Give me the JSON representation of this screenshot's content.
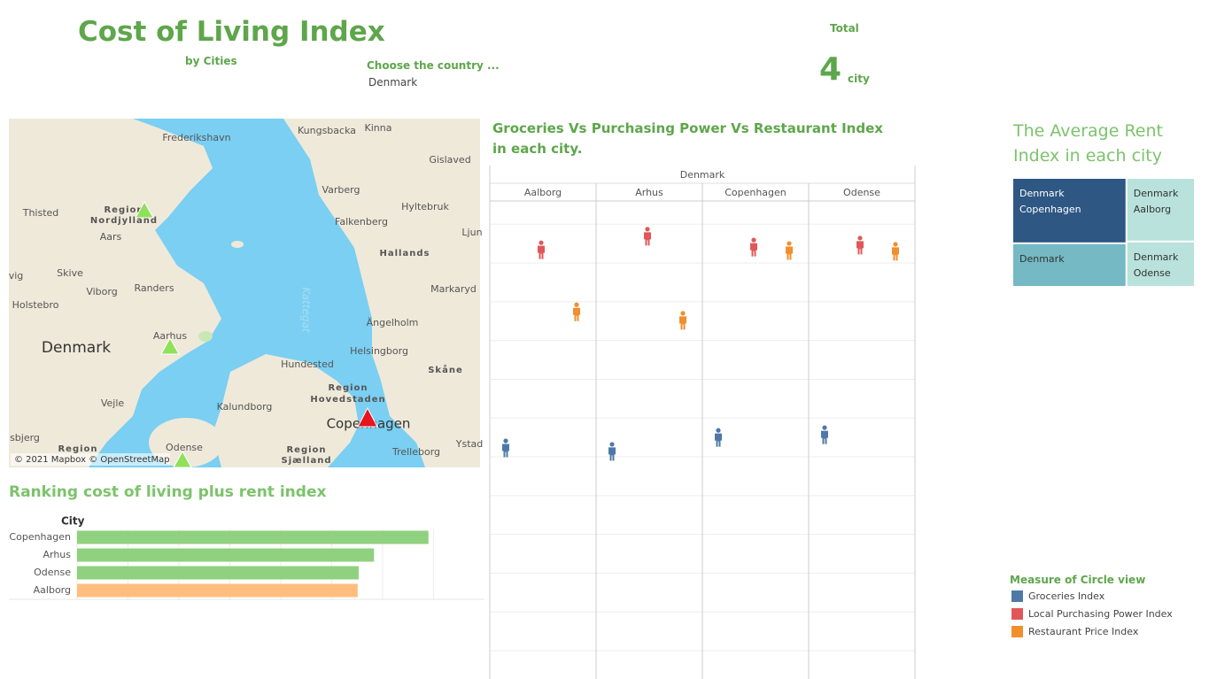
{
  "header": {
    "title": "Cost of Living Index",
    "subtitle": "by Cities",
    "filter_label": "Choose the country ...",
    "filter_value": "Denmark",
    "total_label": "Total",
    "total_value": 4,
    "total_unit": "city"
  },
  "map": {
    "attribution": "© 2021 Mapbox © OpenStreetMap",
    "labels": [
      "Frederikshavn",
      "Kungsbacka",
      "Kinna",
      "Gislaved",
      "Varberg",
      "Hyltebruk",
      "Falkenberg",
      "Thisted",
      "Region",
      "Nordjylland",
      "Aars",
      "Hallands",
      "Skive",
      "Viborg",
      "Randers",
      "Kattegat",
      "Markaryd",
      "Holstebro",
      "Ängelholm",
      "Aarhus",
      "Denmark",
      "Helsingborg",
      "Skåne",
      "Hundested",
      "Region",
      "Hovedstaden",
      "Vejle",
      "Kalundborg",
      "Copenhagen",
      "Ystad",
      "Trelleborg",
      "Odense",
      "Region",
      "Region",
      "Sjælland",
      "sbjerg",
      "vig",
      "Ljun"
    ]
  },
  "chart_data": [
    {
      "type": "bar",
      "title": "Ranking cost of living plus rent index",
      "axis_title": "City",
      "categories": [
        "Copenhagen",
        "Arhus",
        "Odense",
        "Aalborg"
      ],
      "values": [
        69,
        58.3,
        55.3,
        55.1
      ],
      "colors": [
        "#8fd17e",
        "#8fd17e",
        "#8fd17e",
        "#ffbe7d"
      ],
      "xlim": [
        0,
        70
      ],
      "xticks": [
        0,
        10,
        20,
        30,
        40,
        50,
        60,
        70
      ],
      "grid": true
    },
    {
      "type": "pictogram",
      "title": "Groceries Vs Purchasing Power Vs Restaurant Index in each city.",
      "group": "Denmark",
      "categories": [
        "Aalborg",
        "Arhus",
        "Copenhagen",
        "Odense"
      ],
      "series": [
        {
          "name": "Groceries Index",
          "color": "#4e79a7",
          "values": [
            52.3,
            51.4,
            55,
            55.7
          ]
        },
        {
          "name": "Local Purchasing Power Index",
          "color": "#e15759",
          "values": [
            103.4,
            106.9,
            104.1,
            104.6
          ]
        },
        {
          "name": "Restaurant Price Index",
          "color": "#f28e2b",
          "values": [
            87.4,
            85.2,
            103.2,
            103
          ]
        }
      ],
      "ylim": [
        -7.3,
        116
      ],
      "yticks": [
        0,
        10,
        20,
        30,
        40,
        50,
        60,
        70,
        80,
        90,
        100,
        110
      ],
      "grid": true,
      "legend_title": "Measure of Circle view"
    },
    {
      "type": "treemap",
      "title": "The Average Rent Index in each city",
      "labels": [
        [
          "Denmark",
          "Copenhagen"
        ],
        [
          "Denmark"
        ],
        [
          "Denmark",
          "Aalborg"
        ],
        [
          "Denmark",
          "Odense"
        ]
      ],
      "values": [
        48,
        32,
        28,
        20
      ],
      "colors": [
        "#2e5783",
        "#74b9c4",
        "#b8e2db",
        "#b8e2db"
      ]
    }
  ]
}
